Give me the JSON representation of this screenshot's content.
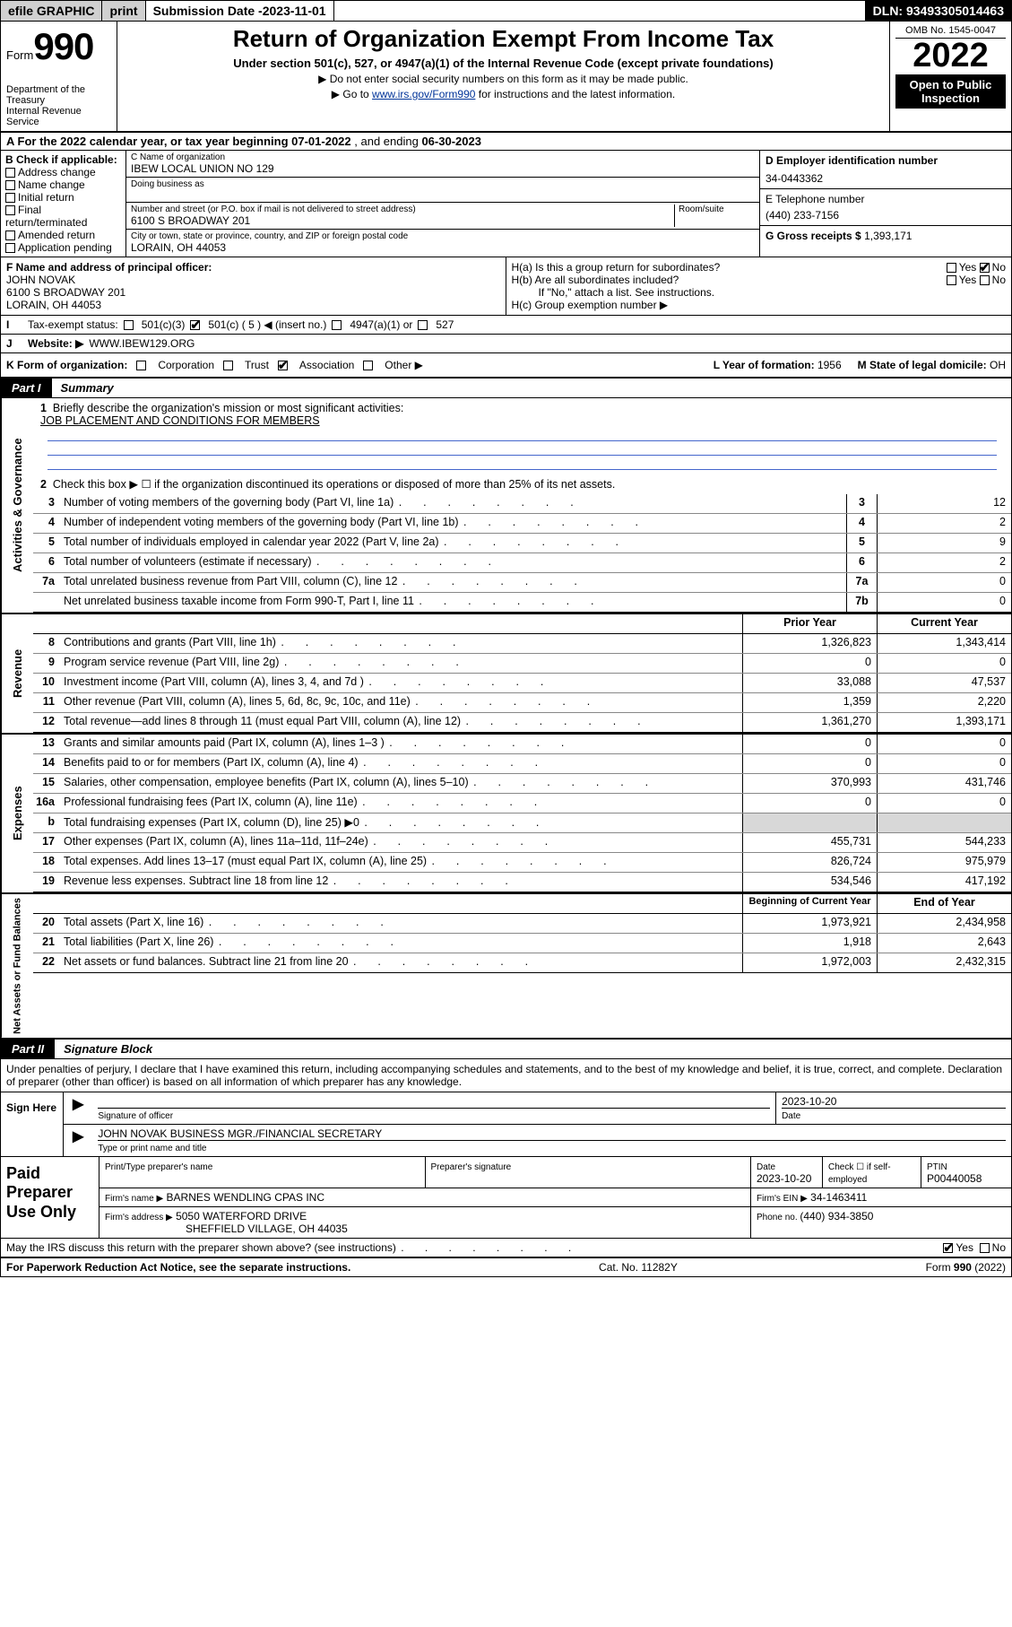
{
  "topbar": {
    "efile": "efile GRAPHIC",
    "print": "print",
    "subdate_label": "Submission Date - ",
    "subdate": "2023-11-01",
    "dln": "DLN: 93493305014463"
  },
  "header": {
    "form_word": "Form",
    "form_num": "990",
    "title": "Return of Organization Exempt From Income Tax",
    "subtitle": "Under section 501(c), 527, or 4947(a)(1) of the Internal Revenue Code (except private foundations)",
    "note1": "▶ Do not enter social security numbers on this form as it may be made public.",
    "note2_pre": "▶ Go to ",
    "note2_link": "www.irs.gov/Form990",
    "note2_post": " for instructions and the latest information.",
    "dept": "Department of the Treasury\nInternal Revenue Service",
    "omb": "OMB No. 1545-0047",
    "year": "2022",
    "openpub": "Open to Public Inspection"
  },
  "period": {
    "text_a": "A For the 2022 calendar year, or tax year beginning ",
    "begin": "07-01-2022",
    "text_b": " , and ending ",
    "end": "06-30-2023"
  },
  "blockB": {
    "check_label": "B Check if applicable:",
    "opts": [
      "Address change",
      "Name change",
      "Initial return",
      "Final return/terminated",
      "Amended return",
      "Application pending"
    ],
    "c_label": "C Name of organization",
    "c_name": "IBEW LOCAL UNION NO 129",
    "dba_label": "Doing business as",
    "dba": "",
    "addr_label": "Number and street (or P.O. box if mail is not delivered to street address)",
    "room_label": "Room/suite",
    "addr": "6100 S BROADWAY 201",
    "city_label": "City or town, state or province, country, and ZIP or foreign postal code",
    "city": "LORAIN, OH  44053",
    "d_label": "D Employer identification number",
    "ein": "34-0443362",
    "e_label": "E Telephone number",
    "phone": "(440) 233-7156",
    "g_label": "G Gross receipts $ ",
    "gross": "1,393,171"
  },
  "blockF": {
    "f_label": "F Name and address of principal officer:",
    "f_name": "JOHN NOVAK",
    "f_addr1": "6100 S BROADWAY 201",
    "f_addr2": "LORAIN, OH  44053",
    "ha": "H(a)  Is this a group return for subordinates?",
    "hb": "H(b)  Are all subordinates included?",
    "hb_note": "If \"No,\" attach a list. See instructions.",
    "hc": "H(c)  Group exemption number ▶",
    "yes": "Yes",
    "no": "No"
  },
  "taxstatus": {
    "label": "Tax-exempt status:",
    "c501c3": "501(c)(3)",
    "c501c": "501(c) ( 5 ) ◀ (insert no.)",
    "c4947": "4947(a)(1) or",
    "c527": "527"
  },
  "website": {
    "label": "Website: ▶",
    "url": "WWW.IBEW129.ORG"
  },
  "kline": {
    "k": "K Form of organization:",
    "corp": "Corporation",
    "trust": "Trust",
    "assoc": "Association",
    "other": "Other ▶",
    "l": "L Year of formation: ",
    "lval": "1956",
    "m": "M State of legal domicile: ",
    "mval": "OH"
  },
  "part1": {
    "tag": "Part I",
    "title": "Summary"
  },
  "gov": {
    "q1": "Briefly describe the organization's mission or most significant activities:",
    "q1a": "JOB PLACEMENT AND CONDITIONS FOR MEMBERS",
    "q2": "Check this box ▶ ☐  if the organization discontinued its operations or disposed of more than 25% of its net assets.",
    "lines": [
      {
        "n": "3",
        "d": "Number of voting members of the governing body (Part VI, line 1a)",
        "b": "3",
        "v": "12"
      },
      {
        "n": "4",
        "d": "Number of independent voting members of the governing body (Part VI, line 1b)",
        "b": "4",
        "v": "2"
      },
      {
        "n": "5",
        "d": "Total number of individuals employed in calendar year 2022 (Part V, line 2a)",
        "b": "5",
        "v": "9"
      },
      {
        "n": "6",
        "d": "Total number of volunteers (estimate if necessary)",
        "b": "6",
        "v": "2"
      },
      {
        "n": "7a",
        "d": "Total unrelated business revenue from Part VIII, column (C), line 12",
        "b": "7a",
        "v": "0"
      },
      {
        "n": "",
        "d": "Net unrelated business taxable income from Form 990-T, Part I, line 11",
        "b": "7b",
        "v": "0"
      }
    ]
  },
  "twocol_hdr": {
    "prior": "Prior Year",
    "curr": "Current Year"
  },
  "rev": [
    {
      "n": "8",
      "d": "Contributions and grants (Part VIII, line 1h)",
      "p": "1,326,823",
      "c": "1,343,414"
    },
    {
      "n": "9",
      "d": "Program service revenue (Part VIII, line 2g)",
      "p": "0",
      "c": "0"
    },
    {
      "n": "10",
      "d": "Investment income (Part VIII, column (A), lines 3, 4, and 7d )",
      "p": "33,088",
      "c": "47,537"
    },
    {
      "n": "11",
      "d": "Other revenue (Part VIII, column (A), lines 5, 6d, 8c, 9c, 10c, and 11e)",
      "p": "1,359",
      "c": "2,220"
    },
    {
      "n": "12",
      "d": "Total revenue—add lines 8 through 11 (must equal Part VIII, column (A), line 12)",
      "p": "1,361,270",
      "c": "1,393,171"
    }
  ],
  "exp": [
    {
      "n": "13",
      "d": "Grants and similar amounts paid (Part IX, column (A), lines 1–3 )",
      "p": "0",
      "c": "0"
    },
    {
      "n": "14",
      "d": "Benefits paid to or for members (Part IX, column (A), line 4)",
      "p": "0",
      "c": "0"
    },
    {
      "n": "15",
      "d": "Salaries, other compensation, employee benefits (Part IX, column (A), lines 5–10)",
      "p": "370,993",
      "c": "431,746"
    },
    {
      "n": "16a",
      "d": "Professional fundraising fees (Part IX, column (A), line 11e)",
      "p": "0",
      "c": "0"
    },
    {
      "n": "b",
      "d": "Total fundraising expenses (Part IX, column (D), line 25) ▶0",
      "p": "",
      "c": "",
      "shadep": true,
      "shadec": true
    },
    {
      "n": "17",
      "d": "Other expenses (Part IX, column (A), lines 11a–11d, 11f–24e)",
      "p": "455,731",
      "c": "544,233"
    },
    {
      "n": "18",
      "d": "Total expenses. Add lines 13–17 (must equal Part IX, column (A), line 25)",
      "p": "826,724",
      "c": "975,979"
    },
    {
      "n": "19",
      "d": "Revenue less expenses. Subtract line 18 from line 12",
      "p": "534,546",
      "c": "417,192"
    }
  ],
  "net_hdr": {
    "prior": "Beginning of Current Year",
    "curr": "End of Year"
  },
  "net": [
    {
      "n": "20",
      "d": "Total assets (Part X, line 16)",
      "p": "1,973,921",
      "c": "2,434,958"
    },
    {
      "n": "21",
      "d": "Total liabilities (Part X, line 26)",
      "p": "1,918",
      "c": "2,643"
    },
    {
      "n": "22",
      "d": "Net assets or fund balances. Subtract line 21 from line 20",
      "p": "1,972,003",
      "c": "2,432,315"
    }
  ],
  "part2": {
    "tag": "Part II",
    "title": "Signature Block"
  },
  "sig": {
    "decl": "Under penalties of perjury, I declare that I have examined this return, including accompanying schedules and statements, and to the best of my knowledge and belief, it is true, correct, and complete. Declaration of preparer (other than officer) is based on all information of which preparer has any knowledge.",
    "signhere": "Sign Here",
    "sigof": "Signature of officer",
    "date": "2023-10-20",
    "datel": "Date",
    "name": "JOHN NOVAK  BUSINESS MGR./FINANCIAL SECRETARY",
    "namel": "Type or print name and title"
  },
  "prep": {
    "label": "Paid Preparer Use Only",
    "h1": "Print/Type preparer's name",
    "h2": "Preparer's signature",
    "h3": "Date",
    "h4": "Check ☐ if self-employed",
    "h5": "PTIN",
    "date": "2023-10-20",
    "ptin": "P00440058",
    "firmname_l": "Firm's name    ▶",
    "firmname": "BARNES WENDLING CPAS INC",
    "firmein_l": "Firm's EIN ▶",
    "firmein": "34-1463411",
    "firmaddr_l": "Firm's address ▶",
    "firmaddr1": "5050 WATERFORD DRIVE",
    "firmaddr2": "SHEFFIELD VILLAGE, OH  44035",
    "phone_l": "Phone no. ",
    "phone": "(440) 934-3850"
  },
  "discuss": {
    "q": "May the IRS discuss this return with the preparer shown above? (see instructions)",
    "yes": "Yes",
    "no": "No"
  },
  "footer": {
    "left": "For Paperwork Reduction Act Notice, see the separate instructions.",
    "mid": "Cat. No. 11282Y",
    "right": "Form 990 (2022)"
  },
  "vtabs": {
    "gov": "Activities & Governance",
    "rev": "Revenue",
    "exp": "Expenses",
    "net": "Net Assets or Fund Balances"
  }
}
